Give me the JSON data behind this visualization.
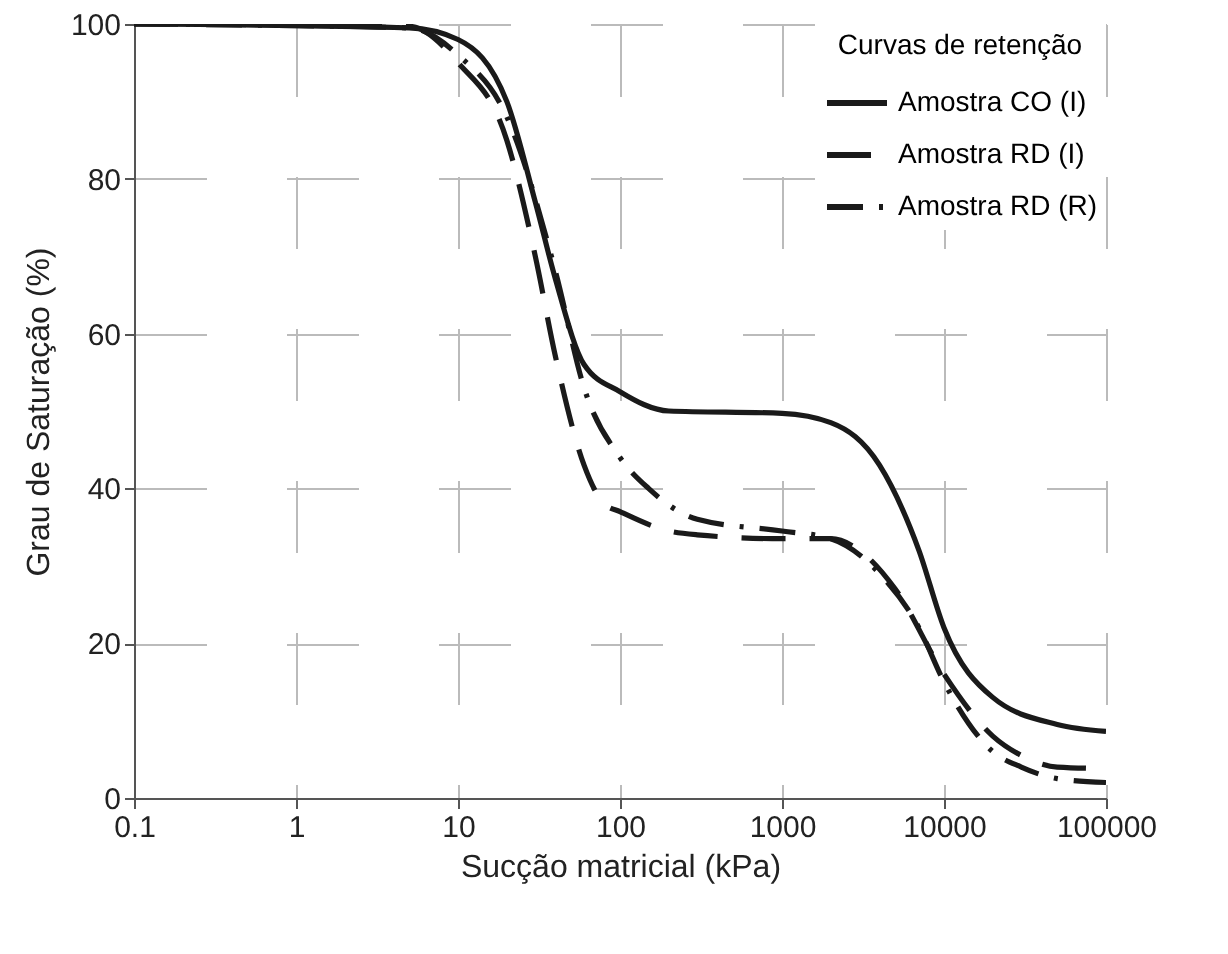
{
  "chart_data": {
    "type": "line",
    "xlabel": "Sucção matricial (kPa)",
    "ylabel": "Grau de Saturação (%)",
    "legend_title": "Curvas de retenção",
    "log": "x",
    "xlim": [
      0.1,
      100000
    ],
    "xticks": [
      0.1,
      1,
      10,
      100,
      1000,
      10000,
      100000
    ],
    "ylim": [
      0,
      100
    ],
    "yticks": [
      0,
      20,
      40,
      60,
      80,
      100
    ],
    "grid": true,
    "legend": "top right",
    "marker": "none",
    "series": [
      {
        "name": "Amostra CO (I)",
        "color": "#1a1a1a",
        "line_style": "solid",
        "x": [
          0.1,
          5,
          10,
          20,
          30,
          40,
          60,
          100,
          200,
          1000,
          2000,
          4000,
          7000,
          10000,
          20000,
          50000,
          100000
        ],
        "values": [
          100,
          99.5,
          98,
          90,
          77,
          67,
          56,
          52.5,
          50,
          49.7,
          48.5,
          43,
          32,
          22,
          13,
          9.5,
          8.6
        ]
      },
      {
        "name": "Amostra RD (I)",
        "color": "#1a1a1a",
        "line_style": "dashed",
        "x": [
          0.1,
          5,
          10,
          20,
          30,
          40,
          60,
          80,
          100,
          200,
          300,
          1000,
          2000,
          3000,
          5000,
          10000,
          20000,
          30000,
          50000,
          100000
        ],
        "values": [
          100,
          99.7,
          95,
          85,
          70,
          57,
          43,
          38,
          37,
          34.5,
          34,
          33.5,
          33.5,
          32,
          27,
          16,
          8,
          5.5,
          4,
          3.8
        ]
      },
      {
        "name": "Amostra RD (R)",
        "color": "#1a1a1a",
        "line_style": "dotted",
        "x": [
          0.1,
          5,
          10,
          20,
          40,
          60,
          100,
          150,
          300,
          1000,
          2000,
          4000,
          7000,
          10000,
          20000,
          30000,
          50000,
          100000
        ],
        "values": [
          100,
          99.5,
          96,
          88,
          68,
          53,
          44,
          40,
          36,
          34.5,
          33.5,
          29,
          22,
          15,
          6,
          4,
          2.5,
          2
        ]
      }
    ]
  }
}
